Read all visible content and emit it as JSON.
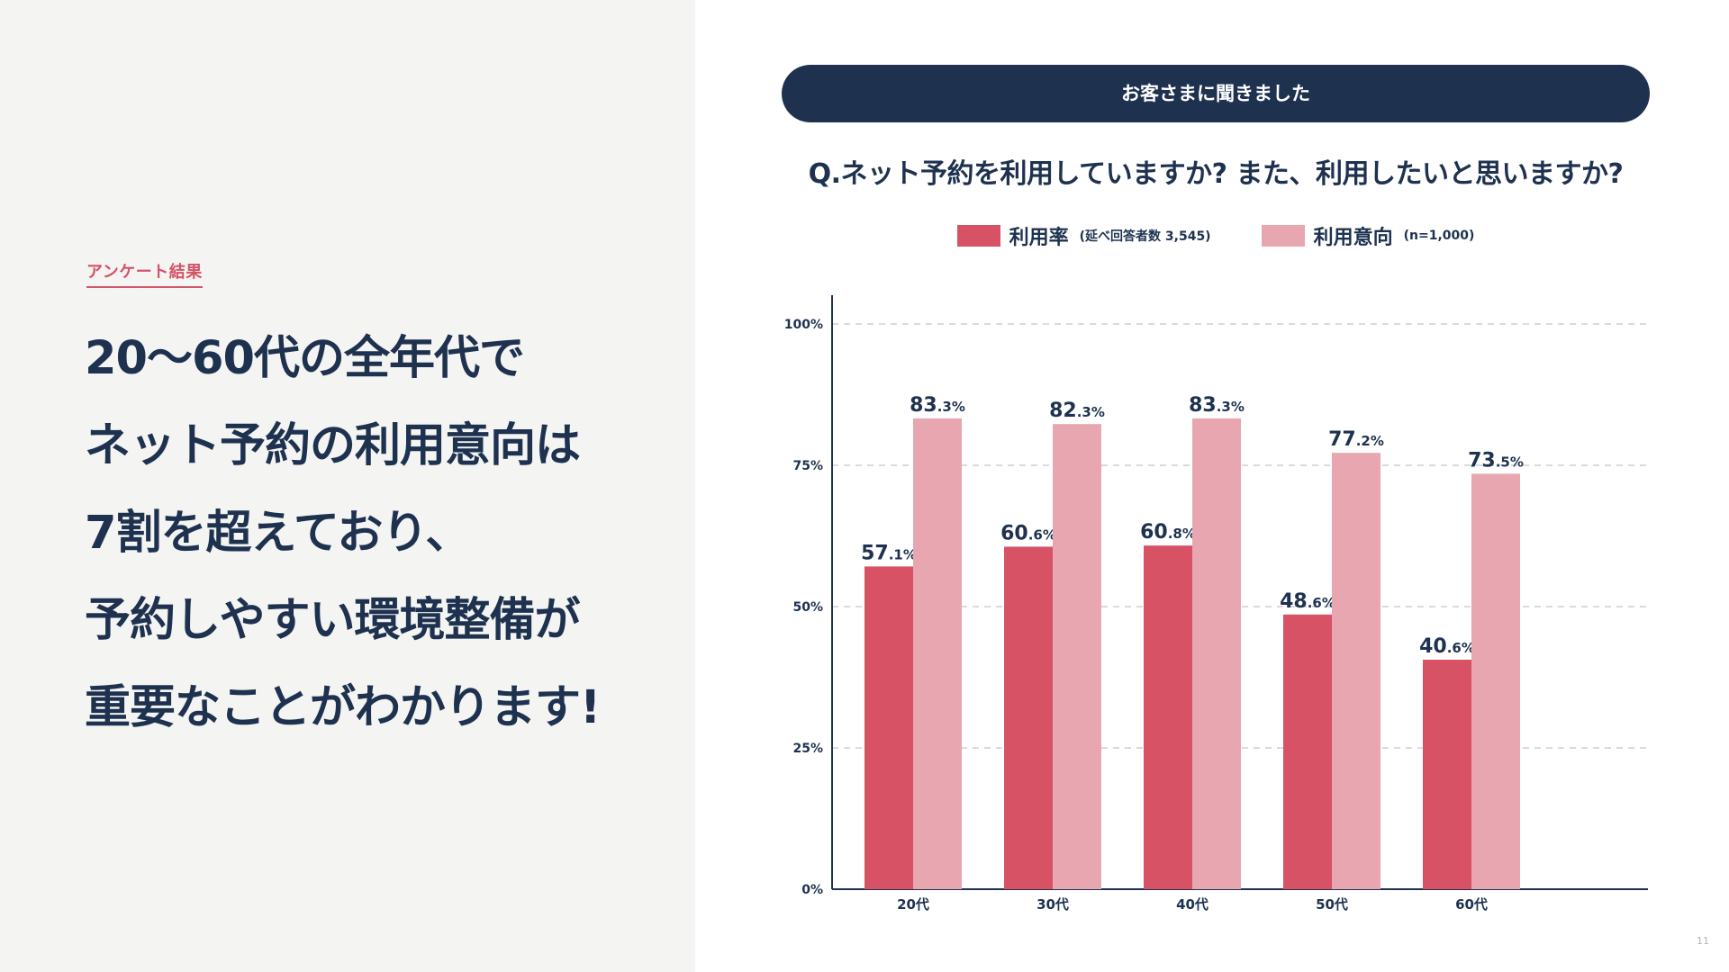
{
  "left": {
    "tag": "アンケート結果",
    "headline": [
      "20〜60代の全年代で",
      "ネット予約の利用意向は",
      "7割を超えており、",
      "予約しやすい環境整備が",
      "重要なことがわかります!"
    ]
  },
  "right": {
    "banner": "お客さまに聞きました",
    "question": "Q.ネット予約を利用していますか? また、利用したいと思いますか?"
  },
  "legend": [
    {
      "name": "利用率",
      "note": "(延べ回答者数 3,545)",
      "color": "#d75265"
    },
    {
      "name": "利用意向",
      "note": "(n=1,000)",
      "color": "#e8a6b0"
    }
  ],
  "chart_data": {
    "type": "bar",
    "categories": [
      "20代",
      "30代",
      "40代",
      "50代",
      "60代"
    ],
    "series": [
      {
        "name": "利用率",
        "values": [
          57.1,
          60.6,
          60.8,
          48.6,
          40.6
        ],
        "color": "#d75265"
      },
      {
        "name": "利用意向",
        "values": [
          83.3,
          82.3,
          83.3,
          77.2,
          73.5
        ],
        "color": "#e8a6b0"
      }
    ],
    "ylim": [
      0,
      100
    ],
    "yticks": [
      0,
      25,
      50,
      75,
      100
    ],
    "ytick_labels": [
      "0%",
      "25%",
      "50%",
      "75%",
      "100%"
    ],
    "grid": true,
    "legend": "top"
  },
  "page_number": "11"
}
